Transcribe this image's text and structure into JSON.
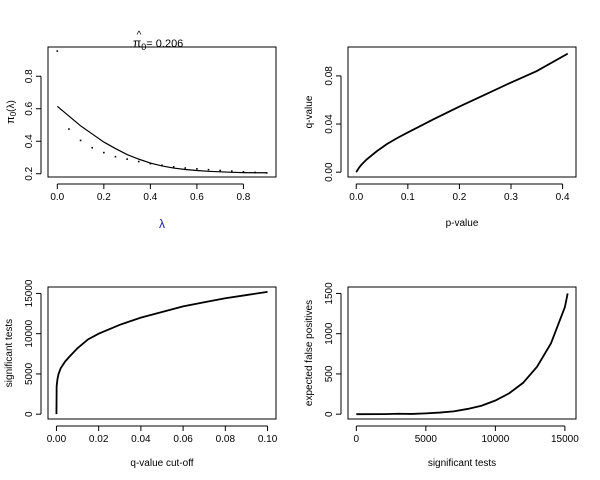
{
  "chart_data": [
    {
      "type": "scatter",
      "title_prefix": "π",
      "title_hat": "^",
      "title_sub": "0",
      "title_value": "= 0.206",
      "xlabel": "λ",
      "ylabel_prefix": "π",
      "ylabel_sub": "0",
      "ylabel_suffix": "(λ)",
      "xlim": [
        -0.04,
        0.94
      ],
      "ylim": [
        0.18,
        0.98
      ],
      "xticks": [
        0,
        0.2,
        0.4,
        0.6,
        0.8
      ],
      "xtick_labels": [
        "0.0",
        "0.2",
        "0.4",
        "0.6",
        "0.8"
      ],
      "yticks": [
        0.2,
        0.4,
        0.6,
        0.8
      ],
      "ytick_labels": [
        "0.2",
        "0.4",
        "0.6",
        "0.8"
      ],
      "series": [
        {
          "kind": "points",
          "x": [
            0,
            0.05,
            0.1,
            0.15,
            0.2,
            0.25,
            0.3,
            0.35,
            0.4,
            0.45,
            0.5,
            0.55,
            0.6,
            0.65,
            0.7,
            0.75,
            0.8,
            0.85,
            0.9
          ],
          "y": [
            0.955,
            0.475,
            0.405,
            0.36,
            0.33,
            0.305,
            0.29,
            0.275,
            0.262,
            0.252,
            0.243,
            0.235,
            0.23,
            0.225,
            0.22,
            0.216,
            0.212,
            0.208,
            0.205
          ]
        },
        {
          "kind": "line",
          "x": [
            0,
            0.05,
            0.1,
            0.15,
            0.2,
            0.25,
            0.3,
            0.35,
            0.4,
            0.45,
            0.5,
            0.55,
            0.6,
            0.65,
            0.7,
            0.75,
            0.8,
            0.85,
            0.9
          ],
          "y": [
            0.615,
            0.555,
            0.495,
            0.445,
            0.395,
            0.355,
            0.318,
            0.29,
            0.266,
            0.248,
            0.235,
            0.226,
            0.22,
            0.215,
            0.212,
            0.209,
            0.207,
            0.206,
            0.206
          ]
        }
      ]
    },
    {
      "type": "line",
      "xlabel": "p-value",
      "ylabel": "q-value",
      "xlim": [
        -0.016,
        0.426
      ],
      "ylim": [
        -0.004,
        0.104
      ],
      "xticks": [
        0,
        0.1,
        0.2,
        0.3,
        0.4
      ],
      "xtick_labels": [
        "0.0",
        "0.1",
        "0.2",
        "0.3",
        "0.4"
      ],
      "yticks": [
        0,
        0.04,
        0.08
      ],
      "ytick_labels": [
        "0.00",
        "0.04",
        "0.08"
      ],
      "series": [
        {
          "kind": "line",
          "x": [
            0,
            0.005,
            0.01,
            0.02,
            0.04,
            0.06,
            0.08,
            0.1,
            0.15,
            0.2,
            0.25,
            0.3,
            0.35,
            0.41
          ],
          "y": [
            0,
            0.0035,
            0.0062,
            0.0105,
            0.0175,
            0.0235,
            0.0285,
            0.033,
            0.044,
            0.0545,
            0.0645,
            0.0745,
            0.084,
            0.0985
          ]
        }
      ]
    },
    {
      "type": "line",
      "xlabel": "q-value cut-off",
      "ylabel": "significant tests",
      "xlim": [
        -0.004,
        0.104
      ],
      "ylim": [
        -600,
        15800
      ],
      "xticks": [
        0,
        0.02,
        0.04,
        0.06,
        0.08,
        0.1
      ],
      "xtick_labels": [
        "0.00",
        "0.02",
        "0.04",
        "0.06",
        "0.08",
        "0.10"
      ],
      "yticks": [
        0,
        5000,
        10000,
        15000
      ],
      "ytick_labels": [
        "0",
        "5000",
        "10000",
        "15000"
      ],
      "series": [
        {
          "kind": "line",
          "x": [
            0,
            0.0001,
            0.0005,
            0.001,
            0.002,
            0.004,
            0.006,
            0.01,
            0.015,
            0.02,
            0.03,
            0.04,
            0.05,
            0.06,
            0.07,
            0.08,
            0.09,
            0.1
          ],
          "y": [
            0,
            3500,
            4400,
            5000,
            5700,
            6500,
            7100,
            8200,
            9300,
            10000,
            11100,
            12000,
            12700,
            13400,
            13900,
            14400,
            14800,
            15200
          ]
        }
      ]
    },
    {
      "type": "line",
      "xlabel": "significant tests",
      "ylabel": "expected false positives",
      "xlim": [
        -600,
        15800
      ],
      "ylim": [
        -60,
        1580
      ],
      "xticks": [
        0,
        5000,
        10000,
        15000
      ],
      "xtick_labels": [
        "0",
        "5000",
        "10000",
        "15000"
      ],
      "yticks": [
        0,
        500,
        1000,
        1500
      ],
      "ytick_labels": [
        "0",
        "500",
        "1000",
        "1500"
      ],
      "series": [
        {
          "kind": "line",
          "x": [
            0,
            2000,
            3000,
            4000,
            5000,
            6000,
            7000,
            8000,
            9000,
            10000,
            11000,
            12000,
            13000,
            14000,
            15000,
            15200
          ],
          "y": [
            0,
            1,
            5,
            3,
            10,
            20,
            35,
            65,
            105,
            170,
            260,
            390,
            590,
            880,
            1330,
            1500
          ]
        }
      ]
    }
  ]
}
